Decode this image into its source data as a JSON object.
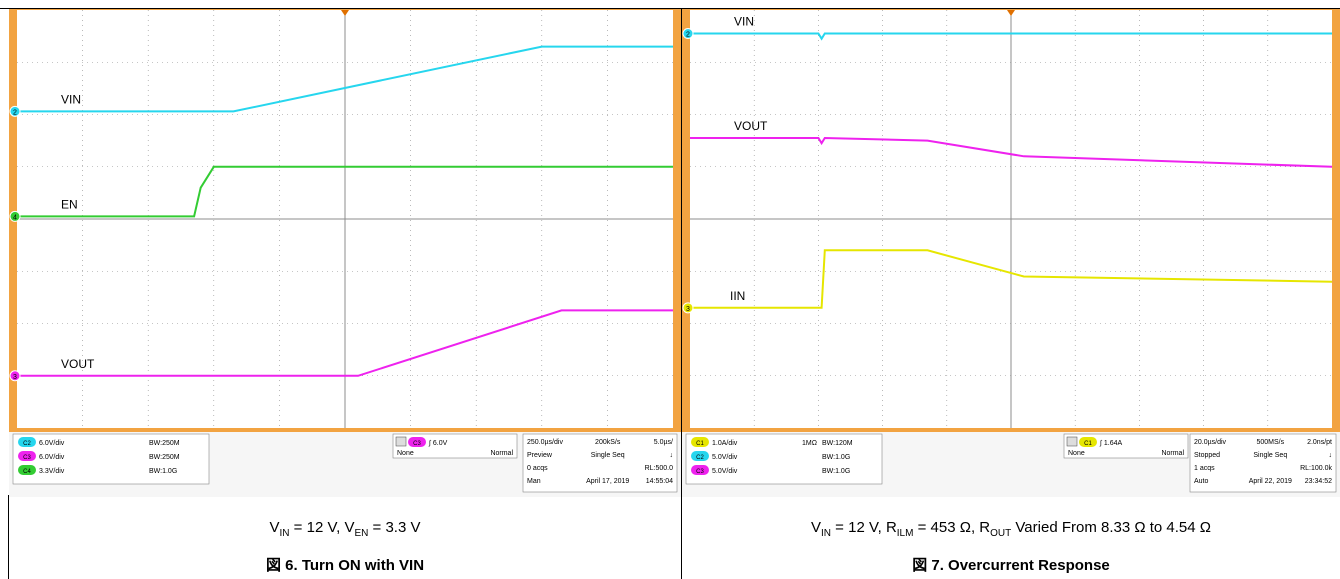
{
  "colors": {
    "frame": "#F2A341",
    "plot_bg": "#ffffff",
    "grid": "#8c8c8c",
    "ch_cyan": "#26D6EE",
    "ch_green": "#33CC33",
    "ch_magenta": "#EE22EE",
    "ch_yellow": "#E6E600",
    "panel_bg": "#F6F6F6"
  },
  "chart_data": [
    {
      "type": "line",
      "grid": true,
      "series": [
        {
          "name": "VIN",
          "marker": "2",
          "x": [
            0,
            0.33,
            0.8,
            1.0
          ],
          "y": [
            6.06,
            6.06,
            7.3,
            7.3
          ]
        },
        {
          "name": "EN",
          "marker": "4",
          "x": [
            0,
            0.27,
            0.28,
            0.3,
            1.0
          ],
          "y": [
            4.05,
            4.05,
            4.6,
            5.0,
            5.0
          ]
        },
        {
          "name": "VOUT",
          "marker": "3",
          "x": [
            0,
            0.52,
            0.83,
            1.0
          ],
          "y": [
            1.0,
            1.0,
            2.25,
            2.25
          ]
        }
      ],
      "channels": [
        {
          "badge": "C2",
          "scale": "6.0V/div",
          "bw": "250M",
          "color": "#26D6EE"
        },
        {
          "badge": "C3",
          "scale": "6.0V/div",
          "bw": "250M",
          "color": "#EE22EE"
        },
        {
          "badge": "C4",
          "scale": "3.3V/div",
          "bw": "1.0G",
          "color": "#33CC33"
        }
      ],
      "trigger": {
        "badge": "C3",
        "level": "6.0V",
        "mode_label": "None",
        "mode": "Normal"
      },
      "timebase": {
        "rows": [
          [
            "250.0µs/div",
            "200kS/s",
            "5.0µs/"
          ],
          [
            "Preview",
            "Single Seq",
            "↓"
          ],
          [
            "0 acqs",
            "",
            "RL:500.0"
          ],
          [
            "Man",
            "April 17, 2019",
            "14:55:04"
          ]
        ]
      },
      "condition": {
        "parts": [
          [
            "V",
            "IN",
            " = 12 V, "
          ],
          [
            "V",
            "EN",
            " = 3.3 V"
          ]
        ]
      },
      "caption": "図 6. Turn ON with VIN"
    },
    {
      "type": "line",
      "grid": true,
      "series": [
        {
          "name": "VIN",
          "marker": "2",
          "x": [
            0,
            0.2,
            0.205,
            0.21,
            1.0
          ],
          "y": [
            7.55,
            7.55,
            7.45,
            7.55,
            7.55
          ]
        },
        {
          "name": "VOUT",
          "marker": "",
          "x": [
            0,
            0.2,
            0.205,
            0.21,
            0.37,
            0.52,
            1.0
          ],
          "y": [
            5.55,
            5.55,
            5.45,
            5.55,
            5.5,
            5.2,
            5.0
          ]
        },
        {
          "name": "IIN",
          "marker": "3",
          "x": [
            0,
            0.205,
            0.21,
            0.37,
            0.52,
            1.0
          ],
          "y": [
            2.3,
            2.3,
            3.4,
            3.4,
            2.9,
            2.8
          ]
        }
      ],
      "channels": [
        {
          "badge": "C1",
          "scale": "1.0A/div",
          "bw": "120M",
          "extra": "1MΩ",
          "color": "#E6E600"
        },
        {
          "badge": "C2",
          "scale": "5.0V/div",
          "bw": "1.0G",
          "color": "#26D6EE"
        },
        {
          "badge": "C3",
          "scale": "5.0V/div",
          "bw": "1.0G",
          "color": "#EE22EE"
        }
      ],
      "trigger": {
        "badge": "C1",
        "level": "1.64A",
        "mode_label": "None",
        "mode": "Normal"
      },
      "timebase": {
        "rows": [
          [
            "20.0µs/div",
            "500MS/s",
            "2.0ns/pt"
          ],
          [
            "Stopped",
            "Single Seq",
            "↓"
          ],
          [
            "1 acqs",
            "",
            "RL:100.0k"
          ],
          [
            "Auto",
            "April 22, 2019",
            "23:34:52"
          ]
        ]
      },
      "condition": {
        "parts": [
          [
            "V",
            "IN",
            " = 12 V, "
          ],
          [
            "R",
            "ILM",
            " = 453 Ω, "
          ],
          [
            "R",
            "OUT",
            " Varied From 8.33 Ω to 4.54 Ω"
          ]
        ]
      },
      "caption": "図 7. Overcurrent Response"
    }
  ]
}
